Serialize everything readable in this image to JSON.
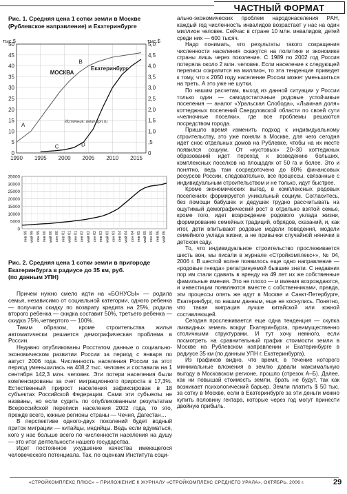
{
  "header": {
    "section_title": "ЧАСТНЫЙ ФОРМАТ"
  },
  "figure1": {
    "caption_line1": "Рис. 1. Средняя цена 1 сотки земли в Москве",
    "caption_line2": "(Рублевское направление) и Екатеринбурге",
    "source": "Источник: www.upn.ru"
  },
  "figure2": {
    "caption_line1": "Рис. 2. Средняя цена 1 сотки земли в пригороде",
    "caption_line2": "Екатеринбурга в радиусе до 35 км, руб.",
    "caption_line3": "(по данным УПН)"
  },
  "chart_data": [
    {
      "type": "line",
      "left_axis_label": "тыс.$",
      "right_axis_label": "тыс.$",
      "x_ticks": [
        "1990",
        "1995",
        "2000",
        "2005",
        "2010",
        "2015"
      ],
      "left_ticks": [
        "0",
        "5",
        "10",
        "15",
        "20",
        "25",
        "30",
        "35",
        "40",
        "45",
        "50"
      ],
      "right_ticks": [
        "0",
        ",5",
        "1,0",
        "1,5",
        "2,0",
        "2,5",
        "3,0",
        "3,5",
        "4,0",
        "4,5",
        "5,0"
      ],
      "xlim": [
        1990,
        2017
      ],
      "left_ylim": [
        0,
        50
      ],
      "right_ylim": [
        0,
        5
      ],
      "series": [
        {
          "name": "МОСКВА",
          "axis": "left",
          "x": [
            1990,
            1993,
            1995,
            1997,
            1999,
            2001,
            2003,
            2005,
            2007,
            2010,
            2013,
            2016
          ],
          "y": [
            5,
            10,
            16,
            22,
            28,
            33,
            37,
            40,
            42,
            44,
            45,
            46
          ]
        },
        {
          "name": "Екатеринбург",
          "axis": "right",
          "x": [
            1995,
            1998,
            2000,
            2002,
            2004,
            2006,
            2008,
            2010,
            2012,
            2014,
            2016
          ],
          "y": [
            0.05,
            0.1,
            0.15,
            0.25,
            0.5,
            1.1,
            2.1,
            3.0,
            3.6,
            4.0,
            4.3
          ]
        }
      ],
      "point_labels": [
        "A",
        "B",
        "C",
        "D"
      ]
    },
    {
      "type": "line",
      "y_ticks": [
        "0",
        "5000",
        "10000",
        "15000",
        "20000",
        "25000",
        "30000",
        "35000"
      ],
      "ylim": [
        0,
        35000
      ],
      "x_ticks": [
        "янв 99",
        "май 99",
        "сен 99",
        "янв 00",
        "май 00",
        "сен 00",
        "янв 01",
        "май 01",
        "сен 01",
        "янв 02",
        "май 02",
        "сен 02",
        "янв 03",
        "май 03",
        "сен 03",
        "янв 04",
        "май 04",
        "сен 04",
        "янв 05",
        "май 05",
        "сен 05",
        "янв 06",
        "май 06"
      ],
      "values": [
        2400,
        2600,
        2800,
        3100,
        3300,
        3500,
        3800,
        4200,
        4500,
        4900,
        5400,
        5800,
        6300,
        7000,
        7700,
        8500,
        9800,
        11500,
        13500,
        16500,
        19500,
        22500,
        25500,
        27500,
        28500,
        29000,
        29500,
        30500
      ]
    }
  ],
  "left_column": {
    "paragraphs": [
      "Причем нужно смело идти на «БОНУСЫ» — родила семья, независимо от социальной категории, одного ребенка — получила скидку по возврату кредита на 25%, родила второго ребенка — скидка составит 50%, третьего ребенка — скидка 75%,четвертого — 100%.",
      "Таким образом, кроме строительства жилья автоматически решается демографическая проблема в России.",
      "Недавно опубликованы Росстатом данные о социально-экономическом развитии России за период с января по август 2006 года. Численность населения России за этот период уменьшилась на 408,2 тыс. человек и составила на 1 сентября 142,3 млн. человек. Эти потери населения были компенсированы за счет миграционного прироста в 17,3%. Естественный прирост населения зафиксирован в 18 субъектах Российской Федерации. Сами эти субъекты не названы, но если судить по опубликованным результатам Всероссийской переписи населения 2002 года, то это, прежде всего, южные регионы страны — Чечня, Дагестан…",
      "В перспективе одного-двух поколений будет водный приток миграции — китайцы, индийцы. Ведь если вдуматься, кого у нас больше всего по численности населения на душу — это итог деятельности нашего государства.",
      "Идет постоянное ухудшение качества имеющегося человеческого потенциала. Так, по оценкам Института соци-"
    ]
  },
  "right_column": {
    "paragraphs": [
      "ально-экономических проблем народонаселения РАН, каждый год численность инвалидов возрастает у нас на один миллион человек. Сейчас в стране 10 млн. инвалидов, детей среди них — 600 тысяч.",
      "Надо понимать, что результаты такого сокращения численности населения скажутся на политике и экономике страны лишь через поколение. С 1989 по 2002 год Россия потеряла около 2 млн. человек. Если население к следующей переписи сократится на миллион, то эта тенденция приведет к тому, что к 2050 году население России может уменьшиться на треть. А это уже не шутки.",
      "По нашим расчетам, выход из данной ситуации у России только один — самодостаточные родовые устойчивые поселения — аналог «Уральская Слобода», «Львиная доля» коттеджных поселений Свердловской области по своей сути «челночные поселки», где все проблемы решаются посредством города.",
      "Пришло время изменить подход к индивидуальному строительству, это уже поняли в Москве, для чего сегодня идет снос отдельных домов на Рублевке, чтобы на их месте появился социум. От «кустовых» 20–30 коттеджных образований идет переход к возведению больших, комплексных поселков на площадях от 50 га и более. Это и понятно, ведь там сосредоточено до 80% финансовых ресурсов России, следовательно, все процессы, связанные с индивидуальным строительством и не только, идут быстрее.",
      "Кроме экономических выгод, в комплексных родовых поселениях формируется уникальный социум. Согласитесь, без помощи бабушек и дедушек трудно рассчитывать на ощутимый демографический рост в отдельно взятой семье, кроме того, идет возрождение родового уклада жизни, формирование семейных традиций, обрядов, сказаний, и, как итог, дети впитывают родовые модели поведения, модели семейного уклада жизни, а не привычки случайной нянечки в детском саду.",
      "То, что индивидуальное строительство прослеживается шесть вон, мы писали в журнале «Стройкомплекс+», № 04, 2006 г. В шестой волне появилось еще одно направление — «родовые гнезда» релатринуемой бывшие знати. С недавних пор им стали сдавать в аренду на 49 лет их же собственные фамильные имения. Это не плохо — и имения возрождаются, и инвестиции появляются вместе с собственниками, правда, эти процессы опять же идут в Москве и Санкт-Петербурге, Екатеринбург, по нашим данным, еще не коснулись. Понятно, что такая миграция лучше китайской или южной составляющей.",
      "Сегодня прослеживается еще одна тенденция — скупка ликвидных земель вокруг Екатеринбурга, преимущественно столичными структурами. И тут хочу немного, если посмотреть на сравнительный график стоимости земли в Москве на Рублевском направлении и Екатеринбурге в радиусе 35 км (по данным УПН г. Екатеринбурга).",
      "Из графиков видно, что время, в течение которого минимальные вложения в землю давали максимальную выгоду в Московском регионе, прошло (отрезок А–Б). Далее, как ни повышай стоимость земли, брать не будут, так как возникает психологический барьер. Земли платить $ 50 тыс. за сотку в Москве, если в Екатеринбурге за эти деньги можно купить половину гектара, которые через год могут принести двойную прибыль."
    ]
  },
  "footer": {
    "text": "«СТРОЙКОМПЛЕКС ПЛЮС» – ПРИЛОЖЕНИЕ К ЖУРНАЛУ «СТРОЙКОМПЛЕКС СРЕДНЕГО УРАЛА», ОКТЯБРЬ, 2006 г.",
    "page_number": "29"
  }
}
